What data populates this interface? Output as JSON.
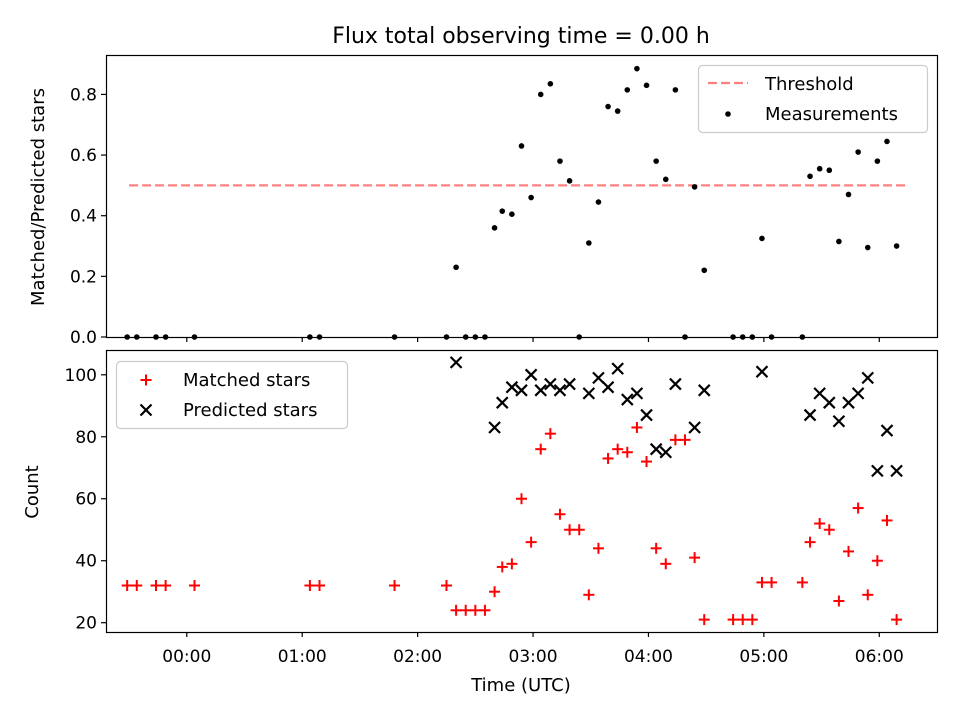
{
  "chart_data": [
    {
      "type": "scatter",
      "title": "Flux total observing time = 0.00 h",
      "xlabel": "",
      "ylabel": "Matched/Predicted stars",
      "xlim": [
        "-0:42",
        "6:30"
      ],
      "ylim": [
        0,
        0.93
      ],
      "yticks": [
        0,
        0.2,
        0.4,
        0.6,
        0.8
      ],
      "ytick_labels": [
        "0.0",
        "0.2",
        "0.4",
        "0.6",
        "0.8"
      ],
      "legend_position": "upper right",
      "grid": false,
      "series": [
        {
          "name": "Threshold",
          "kind": "dashed-line",
          "color": "#ff8080",
          "x": [
            "-0:30",
            "6:15"
          ],
          "y": [
            0.5,
            0.5
          ]
        },
        {
          "name": "Measurements",
          "kind": "dots",
          "color": "#000000",
          "points": [
            [
              "-0:31",
              0.0
            ],
            [
              "-0:26",
              0.0
            ],
            [
              "-0:16",
              0.0
            ],
            [
              "-0:11",
              0.0
            ],
            [
              "0:04",
              0.0
            ],
            [
              "1:04",
              0.0
            ],
            [
              "1:09",
              0.0
            ],
            [
              "1:48",
              0.0
            ],
            [
              "2:15",
              0.0
            ],
            [
              "2:20",
              0.23
            ],
            [
              "2:25",
              0.0
            ],
            [
              "2:30",
              0.0
            ],
            [
              "2:35",
              0.0
            ],
            [
              "2:40",
              0.36
            ],
            [
              "2:44",
              0.415
            ],
            [
              "2:49",
              0.405
            ],
            [
              "2:54",
              0.63
            ],
            [
              "2:59",
              0.46
            ],
            [
              "3:04",
              0.8
            ],
            [
              "3:09",
              0.835
            ],
            [
              "3:14",
              0.58
            ],
            [
              "3:19",
              0.515
            ],
            [
              "3:24",
              0.0
            ],
            [
              "3:29",
              0.31
            ],
            [
              "3:34",
              0.445
            ],
            [
              "3:39",
              0.76
            ],
            [
              "3:44",
              0.745
            ],
            [
              "3:49",
              0.815
            ],
            [
              "3:54",
              0.885
            ],
            [
              "3:59",
              0.83
            ],
            [
              "4:04",
              0.58
            ],
            [
              "4:09",
              0.52
            ],
            [
              "4:14",
              0.815
            ],
            [
              "4:19",
              0.0
            ],
            [
              "4:24",
              0.495
            ],
            [
              "4:29",
              0.22
            ],
            [
              "4:44",
              0.0
            ],
            [
              "4:49",
              0.0
            ],
            [
              "4:54",
              0.0
            ],
            [
              "4:59",
              0.325
            ],
            [
              "5:04",
              0.0
            ],
            [
              "5:20",
              0.0
            ],
            [
              "5:24",
              0.53
            ],
            [
              "5:29",
              0.555
            ],
            [
              "5:34",
              0.55
            ],
            [
              "5:39",
              0.315
            ],
            [
              "5:44",
              0.47
            ],
            [
              "5:49",
              0.61
            ],
            [
              "5:54",
              0.295
            ],
            [
              "5:59",
              0.58
            ],
            [
              "6:04",
              0.645
            ],
            [
              "6:09",
              0.3
            ]
          ]
        }
      ]
    },
    {
      "type": "scatter",
      "title": "",
      "xlabel": "Time (UTC)",
      "ylabel": "Count",
      "xlim": [
        "-0:42",
        "6:30"
      ],
      "ylim": [
        17,
        108
      ],
      "xticks": [
        "0:00",
        "1:00",
        "2:00",
        "3:00",
        "4:00",
        "5:00",
        "6:00"
      ],
      "xtick_labels": [
        "00:00",
        "01:00",
        "02:00",
        "03:00",
        "04:00",
        "05:00",
        "06:00"
      ],
      "yticks": [
        20,
        40,
        60,
        80,
        100
      ],
      "ytick_labels": [
        "20",
        "40",
        "60",
        "80",
        "100"
      ],
      "legend_position": "upper left",
      "grid": false,
      "series": [
        {
          "name": "Matched stars",
          "marker": "plus",
          "color": "#ff0000",
          "points": [
            [
              "-0:31",
              32
            ],
            [
              "-0:26",
              32
            ],
            [
              "-0:16",
              32
            ],
            [
              "-0:11",
              32
            ],
            [
              "0:04",
              32
            ],
            [
              "1:04",
              32
            ],
            [
              "1:09",
              32
            ],
            [
              "1:48",
              32
            ],
            [
              "2:15",
              32
            ],
            [
              "2:20",
              24
            ],
            [
              "2:25",
              24
            ],
            [
              "2:30",
              24
            ],
            [
              "2:35",
              24
            ],
            [
              "2:40",
              30
            ],
            [
              "2:44",
              38
            ],
            [
              "2:49",
              39
            ],
            [
              "2:54",
              60
            ],
            [
              "2:59",
              46
            ],
            [
              "3:04",
              76
            ],
            [
              "3:09",
              81
            ],
            [
              "3:14",
              55
            ],
            [
              "3:19",
              50
            ],
            [
              "3:24",
              50
            ],
            [
              "3:29",
              29
            ],
            [
              "3:34",
              44
            ],
            [
              "3:39",
              73
            ],
            [
              "3:44",
              76
            ],
            [
              "3:49",
              75
            ],
            [
              "3:54",
              83
            ],
            [
              "3:59",
              72
            ],
            [
              "4:04",
              44
            ],
            [
              "4:09",
              39
            ],
            [
              "4:14",
              79
            ],
            [
              "4:19",
              79
            ],
            [
              "4:24",
              41
            ],
            [
              "4:29",
              21
            ],
            [
              "4:44",
              21
            ],
            [
              "4:49",
              21
            ],
            [
              "4:54",
              21
            ],
            [
              "4:59",
              33
            ],
            [
              "5:04",
              33
            ],
            [
              "5:20",
              33
            ],
            [
              "5:24",
              46
            ],
            [
              "5:29",
              52
            ],
            [
              "5:34",
              50
            ],
            [
              "5:39",
              27
            ],
            [
              "5:44",
              43
            ],
            [
              "5:49",
              57
            ],
            [
              "5:54",
              29
            ],
            [
              "5:59",
              40
            ],
            [
              "6:04",
              53
            ],
            [
              "6:09",
              21
            ]
          ]
        },
        {
          "name": "Predicted stars",
          "marker": "x",
          "color": "#000000",
          "points": [
            [
              "2:20",
              104
            ],
            [
              "2:40",
              83
            ],
            [
              "2:44",
              91
            ],
            [
              "2:49",
              96
            ],
            [
              "2:54",
              95
            ],
            [
              "2:59",
              100
            ],
            [
              "3:04",
              95
            ],
            [
              "3:09",
              97
            ],
            [
              "3:14",
              95
            ],
            [
              "3:19",
              97
            ],
            [
              "3:29",
              94
            ],
            [
              "3:34",
              99
            ],
            [
              "3:39",
              96
            ],
            [
              "3:44",
              102
            ],
            [
              "3:49",
              92
            ],
            [
              "3:54",
              94
            ],
            [
              "3:59",
              87
            ],
            [
              "4:04",
              76
            ],
            [
              "4:09",
              75
            ],
            [
              "4:14",
              97
            ],
            [
              "4:24",
              83
            ],
            [
              "4:29",
              95
            ],
            [
              "4:59",
              101
            ],
            [
              "5:24",
              87
            ],
            [
              "5:29",
              94
            ],
            [
              "5:34",
              91
            ],
            [
              "5:39",
              85
            ],
            [
              "5:44",
              91
            ],
            [
              "5:49",
              94
            ],
            [
              "5:54",
              99
            ],
            [
              "5:59",
              69
            ],
            [
              "6:04",
              82
            ],
            [
              "6:09",
              69
            ]
          ]
        }
      ]
    }
  ]
}
